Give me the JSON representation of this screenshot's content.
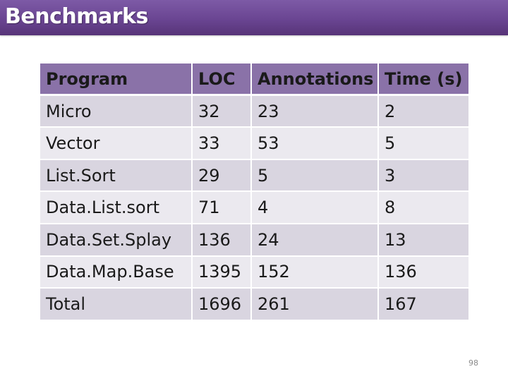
{
  "slide": {
    "title": "Benchmarks",
    "page_number": "98",
    "colors": {
      "title_bar": "#6a4592",
      "header_row": "#8a72a8",
      "row_dark": "#d9d5e0",
      "row_light": "#ebe9ef"
    }
  },
  "table": {
    "headers": [
      "Program",
      "LOC",
      "Annotations",
      "Time (s)"
    ],
    "rows": [
      [
        "Micro",
        "32",
        "23",
        "2"
      ],
      [
        "Vector",
        "33",
        "53",
        "5"
      ],
      [
        "List.Sort",
        "29",
        "5",
        "3"
      ],
      [
        "Data.List.sort",
        "71",
        "4",
        "8"
      ],
      [
        "Data.Set.Splay",
        "136",
        "24",
        "13"
      ],
      [
        "Data.Map.Base",
        "1395",
        "152",
        "136"
      ],
      [
        "Total",
        "1696",
        "261",
        "167"
      ]
    ]
  }
}
